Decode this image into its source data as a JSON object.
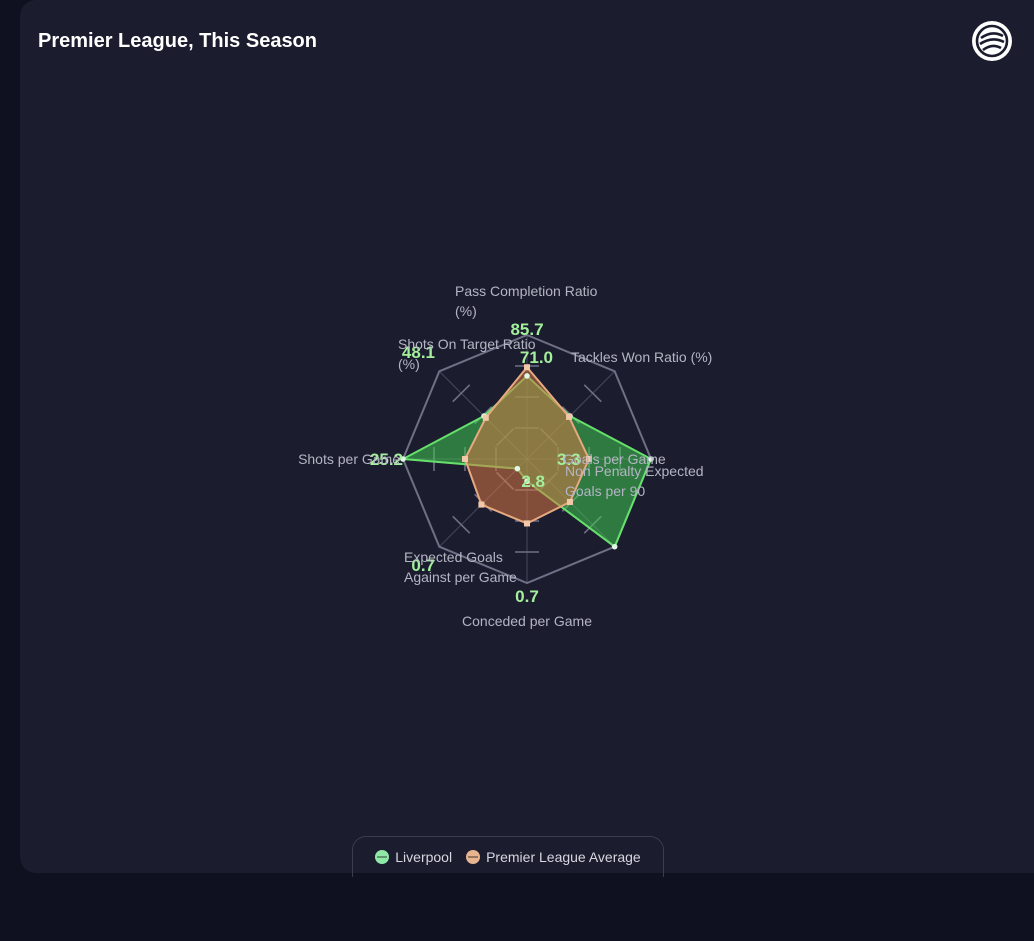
{
  "header": {
    "title": "Premier League, This Season",
    "logo_icon": "league-logo-icon"
  },
  "colors": {
    "team": "#66e06b",
    "team_fill": "rgba(64, 200, 80, 0.55)",
    "average": "#e7a97f",
    "average_fill": "rgba(215, 120, 70, 0.55)",
    "value_text": "#a4ef9c",
    "grid": "#6f7085"
  },
  "chart_data": {
    "type": "radar",
    "axes": [
      {
        "label": "Pass Completion Ratio (%)",
        "value_label": "85.7"
      },
      {
        "label": "Tackles Won Ratio (%)",
        "value_label": "71.0"
      },
      {
        "label": "Goals per Game",
        "value_label": "3.3"
      },
      {
        "label": "Non Penalty Expected Goals per 90",
        "value_label": "2.8"
      },
      {
        "label": "Conceded per Game",
        "value_label": "0.7"
      },
      {
        "label": "Expected Goals Against per Game",
        "value_label": "0.7"
      },
      {
        "label": "Shots per Game",
        "value_label": "25.2"
      },
      {
        "label": "Shots On Target Ratio (%)",
        "value_label": "48.1"
      }
    ],
    "series": [
      {
        "name": "Liverpool",
        "normalized": [
          0.67,
          0.49,
          1.0,
          1.0,
          0.18,
          0.11,
          1.0,
          0.49
        ]
      },
      {
        "name": "Premier League Average",
        "normalized": [
          0.74,
          0.48,
          0.5,
          0.49,
          0.52,
          0.52,
          0.5,
          0.47
        ]
      }
    ],
    "rlim": [
      0,
      1
    ],
    "grid_rings": 4,
    "legend_position": "bottom"
  }
}
